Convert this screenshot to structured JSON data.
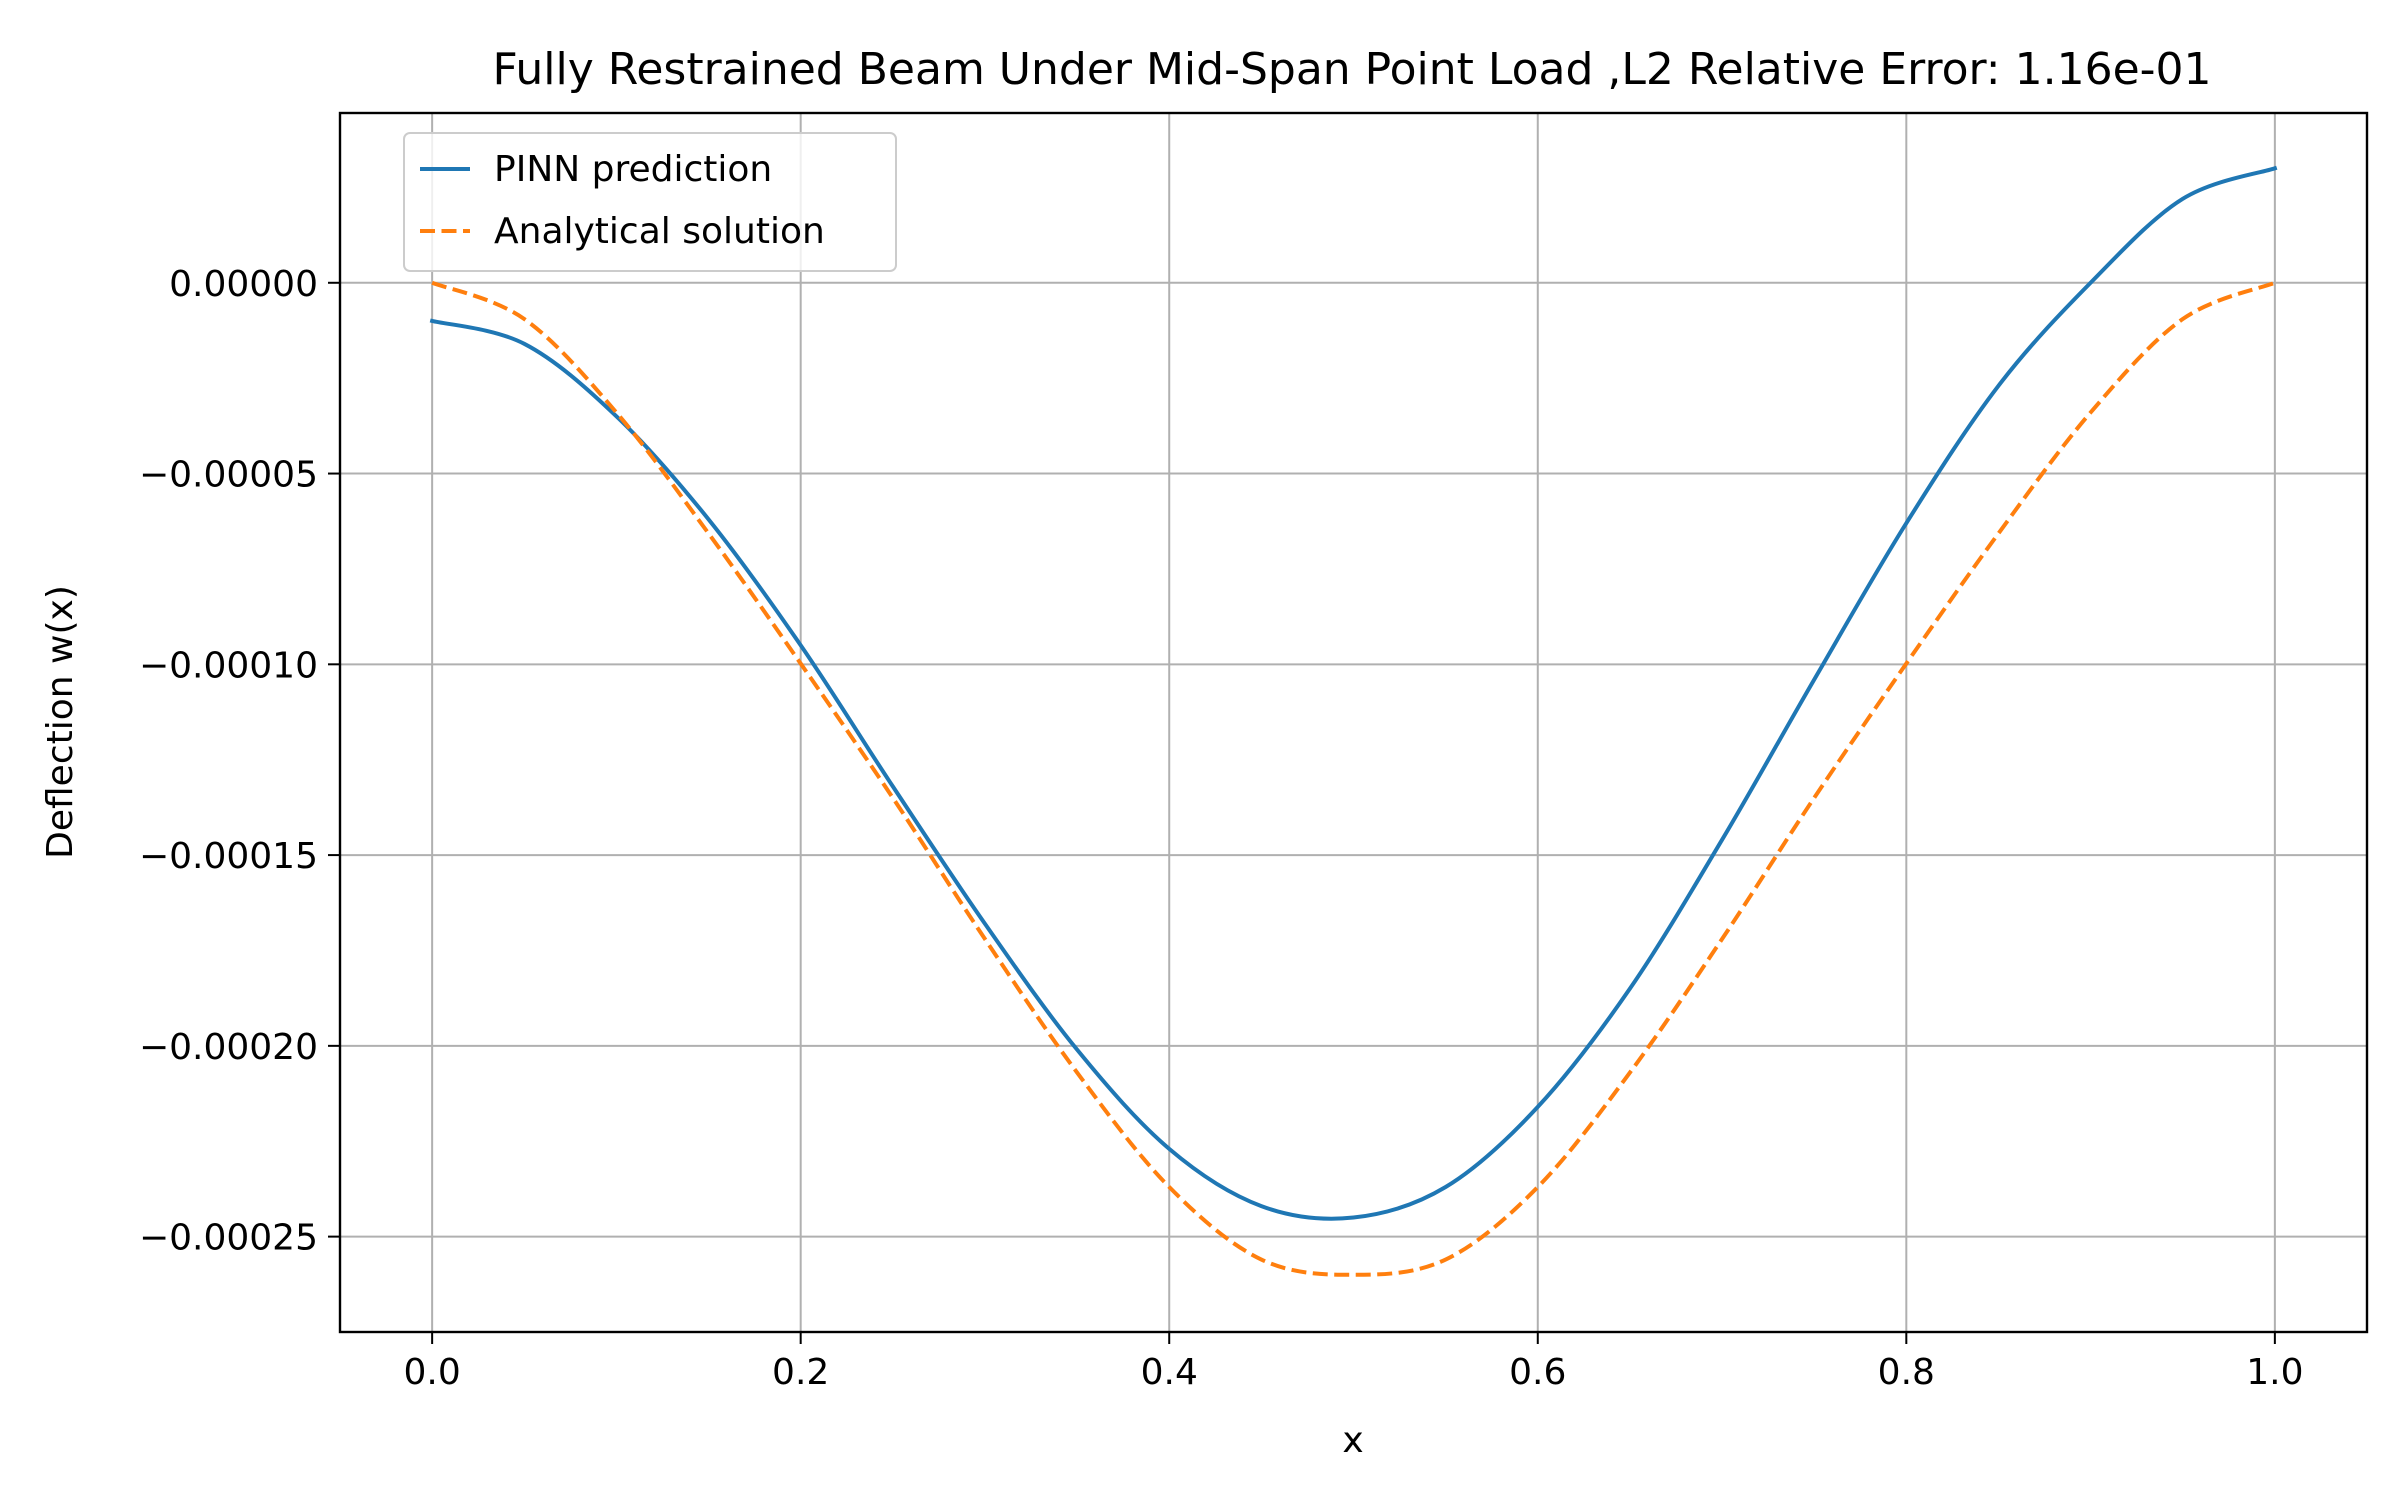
{
  "chart_data": {
    "type": "line",
    "title": "Fully Restrained Beam Under Mid-Span Point Load ,L2 Relative Error: 1.16e-01",
    "xlabel": "x",
    "ylabel": "Deflection w(x)",
    "xlim": [
      -0.05,
      1.05
    ],
    "ylim": [
      -0.000275,
      4.45e-05
    ],
    "grid": true,
    "legend_position": "upper-left",
    "x_ticks": [
      0.0,
      0.2,
      0.4,
      0.6,
      0.8,
      1.0
    ],
    "x_tick_labels": [
      "0.0",
      "0.2",
      "0.4",
      "0.6",
      "0.8",
      "1.0"
    ],
    "y_ticks": [
      0.0,
      -5e-05,
      -0.0001,
      -0.00015,
      -0.0002,
      -0.00025
    ],
    "y_tick_labels": [
      "0.00000",
      "−0.00005",
      "−0.00010",
      "−0.00015",
      "−0.00020",
      "−0.00025"
    ],
    "x": [
      0.0,
      0.05,
      0.1,
      0.15,
      0.2,
      0.25,
      0.3,
      0.35,
      0.4,
      0.45,
      0.5,
      0.55,
      0.6,
      0.65,
      0.7,
      0.75,
      0.8,
      0.85,
      0.9,
      0.95,
      1.0
    ],
    "series": [
      {
        "name": "PINN prediction",
        "color": "#1f77b4",
        "style": "solid",
        "values": [
          -1e-05,
          -1.6e-05,
          -3.5e-05,
          -6.2e-05,
          -9.5e-05,
          -0.000132,
          -0.000168,
          -0.000201,
          -0.000227,
          -0.000242,
          -0.000245,
          -0.000237,
          -0.000216,
          -0.000185,
          -0.000146,
          -0.000104,
          -6.3e-05,
          -2.7e-05,
          0.0,
          2.2e-05,
          3e-05
        ]
      },
      {
        "name": "Analytical solution",
        "color": "#ff7f0e",
        "style": "dashed",
        "values": [
          0.0,
          -9.5e-06,
          -3.4e-05,
          -6.57e-05,
          -9.98e-05,
          -0.000135,
          -0.000172,
          -0.000207,
          -0.000237,
          -0.000256,
          -0.00026,
          -0.000256,
          -0.000237,
          -0.000207,
          -0.000172,
          -0.000135,
          -9.98e-05,
          -6.57e-05,
          -3.4e-05,
          -9.5e-06,
          0.0
        ]
      }
    ]
  }
}
